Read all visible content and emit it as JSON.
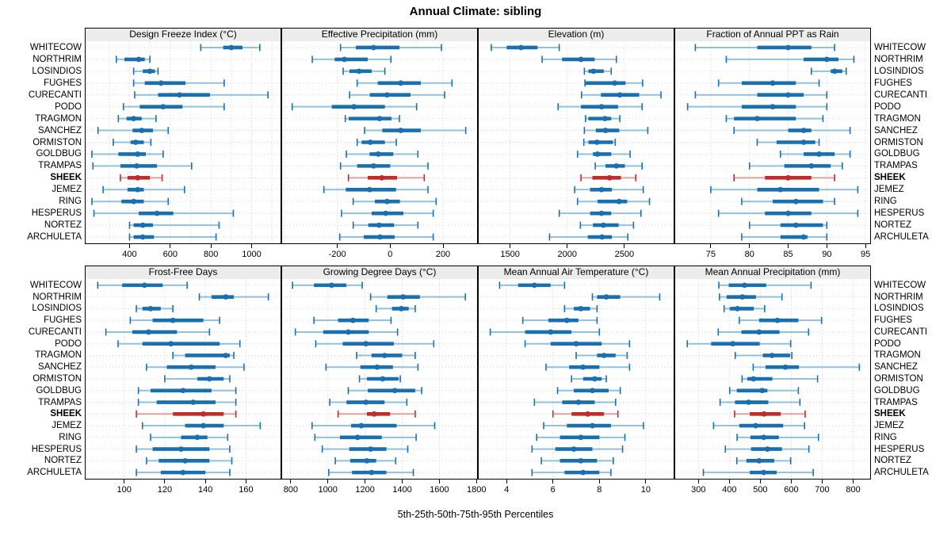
{
  "title": "Annual Climate: sibling",
  "caption": "5th-25th-50th-75th-95th Percentiles",
  "stations": [
    "WHITECOW",
    "NORTHRIM",
    "LOSINDIOS",
    "FUGHES",
    "CURECANTI",
    "PODO",
    "TRAGMON",
    "SANCHEZ",
    "ORMISTON",
    "GOLDBUG",
    "TRAMPAS",
    "SHEEK",
    "JEMEZ",
    "RING",
    "HESPERUS",
    "NORTEZ",
    "ARCHULETA"
  ],
  "highlight_station": "SHEEK",
  "percentiles": [
    5,
    25,
    50,
    75,
    95
  ],
  "colors": {
    "blue": "#1A6FAF",
    "blue_light": "#92C1DE",
    "red": "#C02C2C",
    "red_light": "#DFA0A0",
    "grid": "#C9C9C9",
    "row_line": "#D2D2D2",
    "strip_bg": "#ECECEC",
    "border": "#000000"
  },
  "chart_data": [
    {
      "type": "percentile-range",
      "id": "design-freeze-index",
      "title": "Design Freeze Index (°C)",
      "xlim": [
        184,
        1142
      ],
      "ticks": [
        400,
        600,
        800,
        1000
      ],
      "grid": [
        300,
        400,
        500,
        600,
        700,
        800,
        900,
        1000,
        1100
      ],
      "values": [
        [
          750,
          860,
          900,
          955,
          1040
        ],
        [
          335,
          375,
          445,
          475,
          500
        ],
        [
          420,
          465,
          500,
          525,
          540
        ],
        [
          420,
          475,
          555,
          675,
          865
        ],
        [
          425,
          540,
          645,
          795,
          1080
        ],
        [
          370,
          450,
          565,
          660,
          865
        ],
        [
          345,
          385,
          420,
          460,
          530
        ],
        [
          245,
          415,
          460,
          515,
          590
        ],
        [
          320,
          405,
          430,
          470,
          505
        ],
        [
          215,
          345,
          440,
          480,
          565
        ],
        [
          220,
          355,
          435,
          535,
          705
        ],
        [
          355,
          390,
          440,
          500,
          560
        ],
        [
          270,
          390,
          440,
          470,
          670
        ],
        [
          215,
          360,
          420,
          470,
          590
        ],
        [
          225,
          445,
          535,
          615,
          910
        ],
        [
          400,
          420,
          465,
          515,
          840
        ],
        [
          400,
          420,
          465,
          520,
          825
        ]
      ]
    },
    {
      "type": "percentile-range",
      "id": "effective-precipitation",
      "title": "Effective Precipitation (mm)",
      "xlim": [
        -409,
        329
      ],
      "ticks": [
        -200,
        0,
        200
      ],
      "grid": [
        -400,
        -200,
        0,
        200
      ],
      "values": [
        [
          -188,
          -130,
          -63,
          35,
          194
        ],
        [
          -295,
          -210,
          -173,
          -85,
          3
        ],
        [
          -178,
          -154,
          -118,
          -70,
          -20
        ],
        [
          -125,
          -47,
          40,
          116,
          234
        ],
        [
          -154,
          -77,
          -12,
          77,
          206
        ],
        [
          -371,
          -221,
          -137,
          -20,
          100
        ],
        [
          -170,
          -157,
          -40,
          5,
          35
        ],
        [
          -97,
          -30,
          40,
          116,
          286
        ],
        [
          -125,
          -108,
          -75,
          -20,
          23
        ],
        [
          -166,
          -78,
          -45,
          12,
          105
        ],
        [
          -188,
          -125,
          -63,
          0,
          143
        ],
        [
          -158,
          -85,
          -32,
          26,
          129
        ],
        [
          -251,
          -168,
          -78,
          22,
          143
        ],
        [
          -140,
          -58,
          -12,
          37,
          174
        ],
        [
          -184,
          -70,
          -17,
          50,
          163
        ],
        [
          -140,
          -83,
          -42,
          15,
          105
        ],
        [
          -191,
          -100,
          -38,
          17,
          163
        ]
      ]
    },
    {
      "type": "percentile-range",
      "id": "elevation",
      "title": "Elevation (m)",
      "xlim": [
        1225,
        2931
      ],
      "ticks": [
        1500,
        2000,
        2500
      ],
      "grid": [
        1500,
        2000,
        2500
      ],
      "values": [
        [
          1335,
          1470,
          1595,
          1740,
          1930
        ],
        [
          1780,
          1955,
          2120,
          2240,
          2430
        ],
        [
          2150,
          2185,
          2230,
          2320,
          2385
        ],
        [
          2155,
          2160,
          2415,
          2510,
          2660
        ],
        [
          2125,
          2295,
          2460,
          2630,
          2820
        ],
        [
          1920,
          2120,
          2300,
          2445,
          2655
        ],
        [
          2160,
          2185,
          2330,
          2385,
          2460
        ],
        [
          2150,
          2250,
          2335,
          2455,
          2705
        ],
        [
          2145,
          2185,
          2260,
          2400,
          2420
        ],
        [
          2090,
          2225,
          2265,
          2385,
          2550
        ],
        [
          2245,
          2335,
          2430,
          2505,
          2655
        ],
        [
          2120,
          2220,
          2370,
          2470,
          2600
        ],
        [
          2065,
          2200,
          2300,
          2390,
          2665
        ],
        [
          2090,
          2265,
          2455,
          2525,
          2720
        ],
        [
          1930,
          2200,
          2300,
          2385,
          2645
        ],
        [
          2115,
          2225,
          2315,
          2450,
          2580
        ],
        [
          1845,
          2180,
          2305,
          2390,
          2530
        ]
      ]
    },
    {
      "type": "percentile-range",
      "id": "fraction-ppt-as-rain",
      "title": "Fraction of Annual PPT as Rain",
      "xlim": [
        70.4,
        95.6
      ],
      "ticks": [
        75,
        80,
        85,
        90,
        95
      ],
      "grid": [
        75,
        80,
        85,
        90,
        95
      ],
      "values": [
        [
          73,
          81,
          85,
          88,
          91
        ],
        [
          77,
          87,
          90,
          91.5,
          93.5
        ],
        [
          88,
          90.5,
          91,
          92,
          92.5
        ],
        [
          76,
          79,
          83,
          86,
          89
        ],
        [
          73,
          81,
          85,
          87,
          90
        ],
        [
          72,
          79,
          83,
          86,
          90
        ],
        [
          77,
          78,
          81,
          86,
          89.5
        ],
        [
          78,
          85,
          87,
          88,
          93
        ],
        [
          81,
          83.5,
          87,
          88.5,
          89
        ],
        [
          84,
          87,
          89,
          91,
          93
        ],
        [
          80,
          84.5,
          88,
          90.5,
          92
        ],
        [
          78,
          82,
          85,
          88,
          91
        ],
        [
          75,
          81,
          84,
          89,
          94
        ],
        [
          79,
          83,
          86,
          89.5,
          91
        ],
        [
          76,
          82,
          85,
          88,
          94
        ],
        [
          80,
          84,
          86,
          89.5,
          90
        ],
        [
          79,
          84,
          87,
          87.5,
          90
        ]
      ]
    },
    {
      "type": "percentile-range",
      "id": "frost-free-days",
      "title": "Frost-Free Days",
      "xlim": [
        81,
        177
      ],
      "ticks": [
        100,
        120,
        140,
        160
      ],
      "grid": [
        100,
        120,
        140,
        160
      ],
      "values": [
        [
          87,
          99,
          110,
          119,
          131
        ],
        [
          137,
          143,
          150,
          154,
          171
        ],
        [
          106,
          109,
          113,
          118,
          124
        ],
        [
          103,
          114,
          124,
          139,
          147
        ],
        [
          91,
          104,
          112,
          126,
          142
        ],
        [
          97,
          109,
          123,
          147,
          157
        ],
        [
          124,
          130,
          150,
          152,
          154
        ],
        [
          111,
          121,
          133,
          145,
          159
        ],
        [
          120,
          136,
          142,
          149,
          152
        ],
        [
          107,
          113,
          129,
          143,
          155
        ],
        [
          107,
          116,
          134,
          145,
          155
        ],
        [
          106,
          124,
          139,
          149,
          155
        ],
        [
          109,
          130,
          139,
          149,
          167
        ],
        [
          113,
          128,
          136,
          141,
          151
        ],
        [
          106,
          114,
          128,
          142,
          152
        ],
        [
          111,
          117,
          130,
          142,
          153
        ],
        [
          106,
          118,
          129,
          140,
          152
        ]
      ]
    },
    {
      "type": "percentile-range",
      "id": "growing-degree-days",
      "title": "Growing Degree Days (°C)",
      "xlim": [
        754,
        1803
      ],
      "ticks": [
        800,
        1000,
        1200,
        1400,
        1600,
        1800
      ],
      "grid": [
        800,
        1000,
        1200,
        1400,
        1600,
        1800
      ],
      "values": [
        [
          810,
          925,
          1020,
          1100,
          1185
        ],
        [
          1230,
          1320,
          1405,
          1495,
          1740
        ],
        [
          1260,
          1345,
          1395,
          1435,
          1470
        ],
        [
          925,
          1055,
          1135,
          1220,
          1340
        ],
        [
          825,
          975,
          1110,
          1220,
          1375
        ],
        [
          935,
          1080,
          1205,
          1355,
          1570
        ],
        [
          1155,
          1235,
          1305,
          1400,
          1470
        ],
        [
          990,
          1175,
          1265,
          1350,
          1485
        ],
        [
          1170,
          1210,
          1295,
          1380,
          1390
        ],
        [
          1110,
          1215,
          1360,
          1470,
          1505
        ],
        [
          1010,
          1100,
          1205,
          1305,
          1425
        ],
        [
          1055,
          1210,
          1250,
          1335,
          1470
        ],
        [
          915,
          1125,
          1180,
          1370,
          1575
        ],
        [
          930,
          1065,
          1160,
          1290,
          1475
        ],
        [
          970,
          1115,
          1230,
          1315,
          1430
        ],
        [
          1040,
          1120,
          1210,
          1260,
          1365
        ],
        [
          1005,
          1130,
          1235,
          1315,
          1460
        ]
      ]
    },
    {
      "type": "percentile-range",
      "id": "mean-annual-air-temperature",
      "title": "Mean Annual Air Temperature (°C)",
      "xlim": [
        2.8,
        11.2
      ],
      "ticks": [
        4,
        6,
        8,
        10
      ],
      "grid": [
        4,
        6,
        8,
        10
      ],
      "values": [
        [
          3.7,
          4.5,
          5.2,
          5.9,
          6.5
        ],
        [
          7.7,
          7.9,
          8.3,
          8.9,
          10.6
        ],
        [
          6.5,
          6.9,
          7.2,
          7.6,
          7.9
        ],
        [
          4.7,
          5.8,
          6.6,
          7.1,
          7.9
        ],
        [
          3.3,
          4.8,
          5.9,
          6.8,
          8.0
        ],
        [
          4.8,
          5.9,
          7.0,
          8.1,
          9.3
        ],
        [
          7.0,
          7.9,
          8.2,
          8.7,
          9.2
        ],
        [
          5.7,
          6.7,
          7.3,
          8.0,
          9.3
        ],
        [
          6.8,
          7.3,
          7.8,
          8.1,
          8.3
        ],
        [
          6.2,
          6.9,
          7.7,
          8.4,
          8.9
        ],
        [
          5.2,
          6.4,
          7.1,
          7.8,
          8.7
        ],
        [
          6.0,
          6.8,
          7.5,
          8.2,
          8.8
        ],
        [
          5.6,
          6.6,
          7.7,
          8.5,
          9.9
        ],
        [
          5.3,
          6.3,
          7.2,
          8.0,
          9.1
        ],
        [
          5.1,
          6.1,
          6.9,
          7.7,
          9.0
        ],
        [
          5.5,
          6.3,
          7.2,
          7.9,
          8.6
        ],
        [
          5.1,
          6.5,
          7.3,
          8.0,
          8.5
        ]
      ]
    },
    {
      "type": "percentile-range",
      "id": "mean-annual-precipitation",
      "title": "Mean Annual Precipitation (mm)",
      "xlim": [
        225,
        855
      ],
      "ticks": [
        300,
        400,
        500,
        600,
        700,
        800
      ],
      "grid": [
        300,
        400,
        500,
        600,
        700,
        800
      ],
      "values": [
        [
          366,
          398,
          449,
          519,
          664
        ],
        [
          368,
          391,
          442,
          486,
          570
        ],
        [
          383,
          401,
          426,
          479,
          514
        ],
        [
          432,
          496,
          555,
          623,
          698
        ],
        [
          364,
          439,
          496,
          562,
          656
        ],
        [
          264,
          341,
          411,
          498,
          598
        ],
        [
          419,
          508,
          538,
          596,
          602
        ],
        [
          477,
          517,
          581,
          625,
          820
        ],
        [
          441,
          458,
          478,
          539,
          685
        ],
        [
          401,
          424,
          506,
          523,
          623
        ],
        [
          370,
          418,
          462,
          526,
          628
        ],
        [
          417,
          466,
          512,
          566,
          645
        ],
        [
          349,
          432,
          485,
          574,
          643
        ],
        [
          425,
          468,
          511,
          560,
          688
        ],
        [
          387,
          470,
          523,
          570,
          657
        ],
        [
          424,
          455,
          496,
          545,
          598
        ],
        [
          316,
          466,
          511,
          553,
          671
        ]
      ]
    }
  ]
}
